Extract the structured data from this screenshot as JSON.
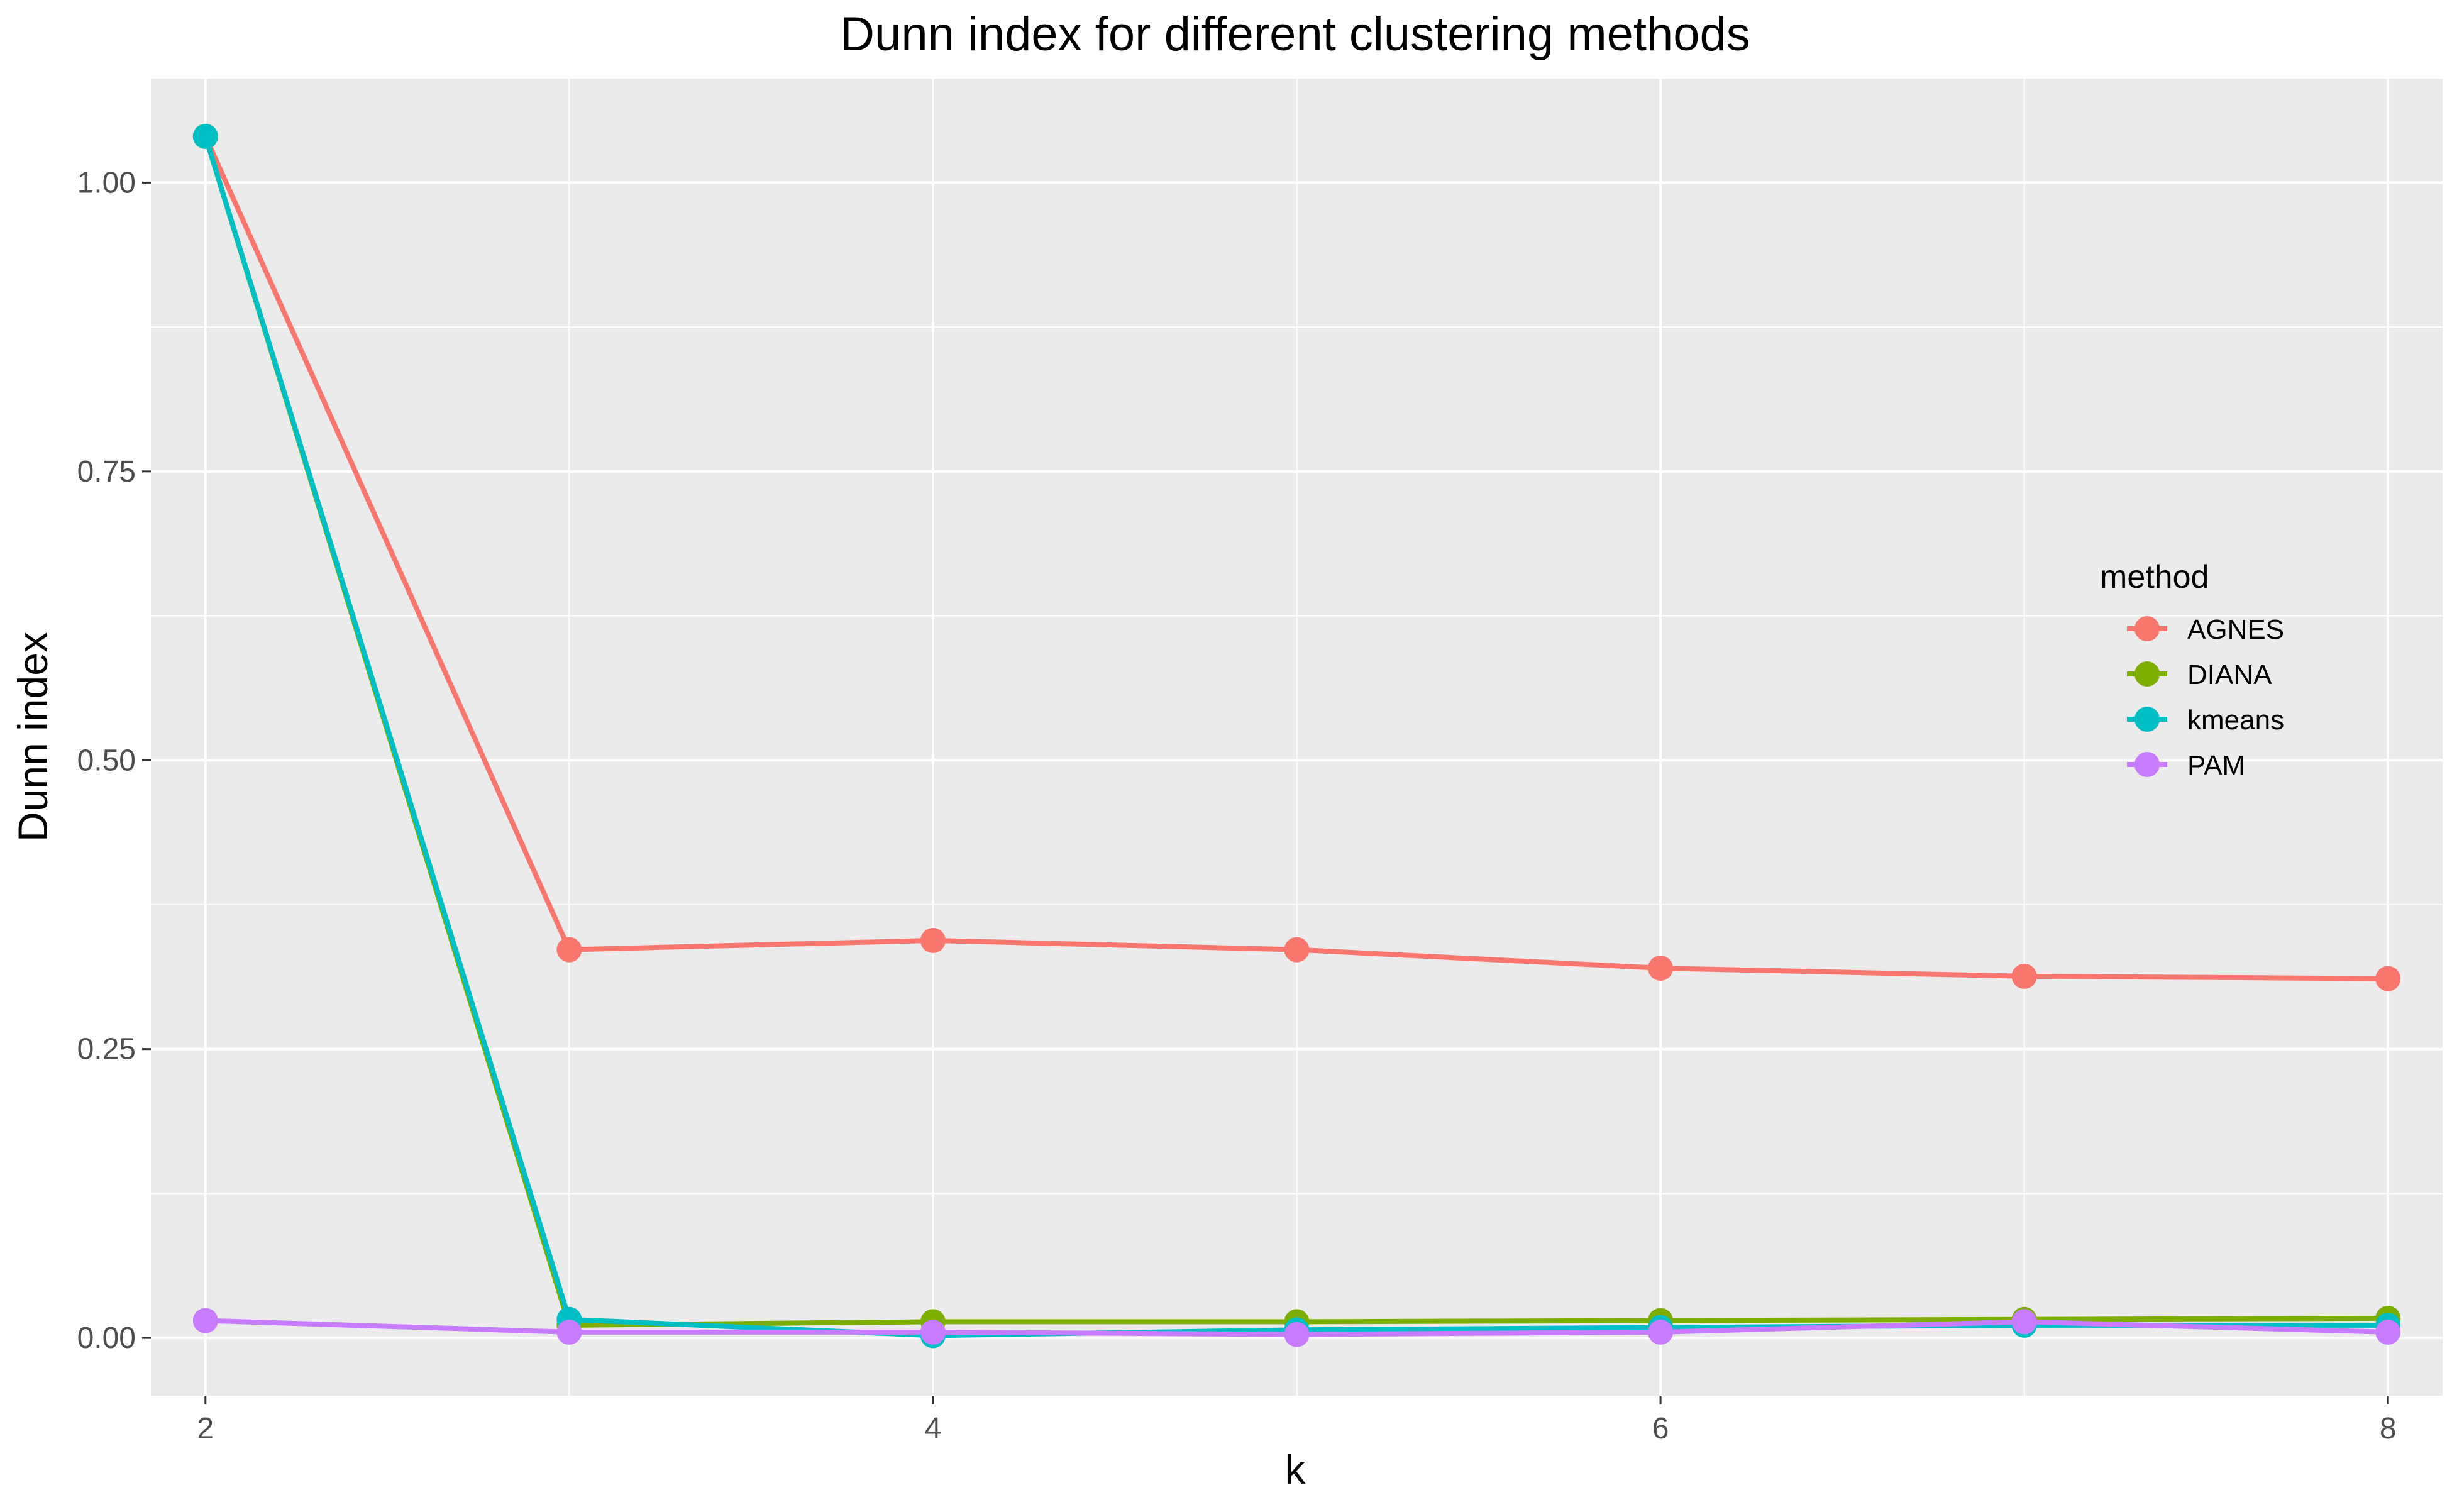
{
  "chart_data": {
    "type": "line",
    "title": "Dunn index for different clustering methods",
    "xlabel": "k",
    "ylabel": "Dunn index",
    "x": [
      2,
      3,
      4,
      5,
      6,
      7,
      8
    ],
    "xticks": [
      "2",
      "4",
      "6",
      "8"
    ],
    "yticks": [
      "0.00",
      "0.25",
      "0.50",
      "0.75",
      "1.00"
    ],
    "xlim": [
      1.85,
      8.15
    ],
    "ylim": [
      -0.05,
      1.09
    ],
    "grid": true,
    "legend": {
      "title": "method",
      "position": "right"
    },
    "series": [
      {
        "name": "AGNES",
        "color": "#F8766D",
        "values": [
          1.04,
          0.336,
          0.344,
          0.336,
          0.32,
          0.313,
          0.311
        ]
      },
      {
        "name": "DIANA",
        "color": "#7CAE00",
        "values": [
          1.04,
          0.011,
          0.014,
          0.014,
          0.015,
          0.016,
          0.017
        ]
      },
      {
        "name": "kmeans",
        "color": "#00BFC4",
        "values": [
          1.04,
          0.016,
          0.002,
          0.007,
          0.009,
          0.011,
          0.011
        ]
      },
      {
        "name": "PAM",
        "color": "#C77CFF",
        "values": [
          0.015,
          0.005,
          0.005,
          0.003,
          0.005,
          0.014,
          0.005
        ]
      }
    ]
  }
}
